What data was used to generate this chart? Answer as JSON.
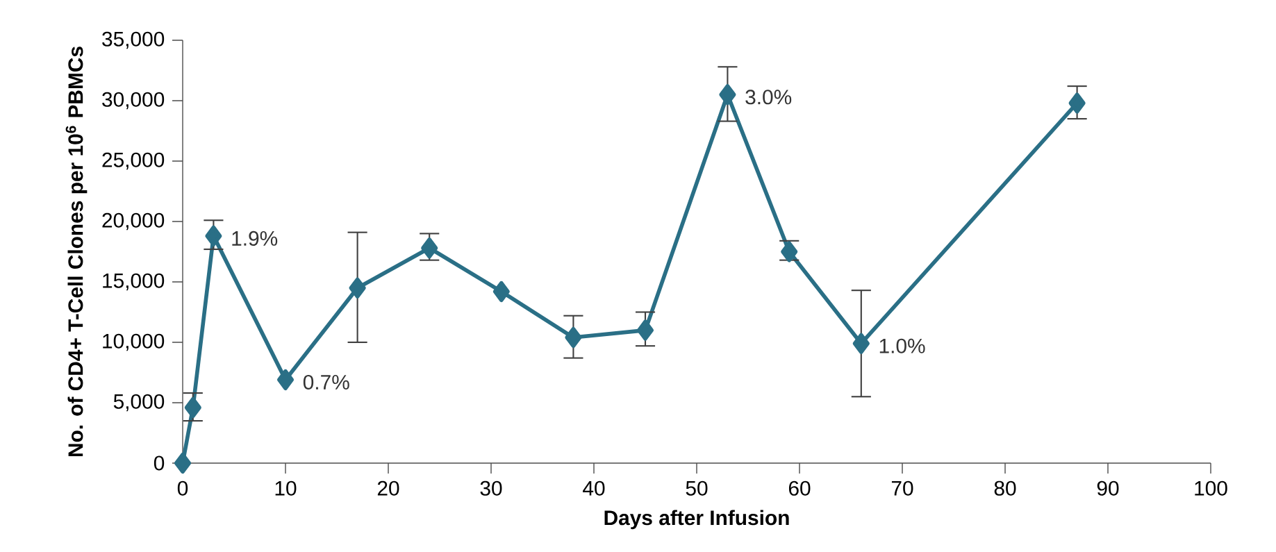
{
  "chart_data": {
    "type": "line",
    "xlabel": "Days after Infusion",
    "ylabel": "No. of CD4+ T-Cell Clones per 10$^{6}$ PBMCs",
    "x": [
      0,
      1,
      3,
      10,
      17,
      24,
      31,
      38,
      45,
      53,
      59,
      66,
      87
    ],
    "series": [
      {
        "color": "#2a6f86",
        "values": [
          0,
          4600,
          18800,
          6900,
          14500,
          17800,
          14200,
          10400,
          11000,
          30500,
          17500,
          9900,
          29800
        ],
        "errors": [
          null,
          [
            3500,
            5800
          ],
          [
            17700,
            20100
          ],
          null,
          [
            10000,
            19100
          ],
          [
            16800,
            19000
          ],
          null,
          [
            8700,
            12200
          ],
          [
            9700,
            12500
          ],
          [
            28300,
            32800
          ],
          [
            16800,
            18400
          ],
          [
            5500,
            14300
          ],
          [
            28500,
            31200
          ]
        ]
      }
    ],
    "xlim": [
      0,
      100
    ],
    "ylim": [
      0,
      35000
    ],
    "xticks": [
      0,
      10,
      20,
      30,
      40,
      50,
      60,
      70,
      80,
      90,
      100
    ],
    "yticks": [
      0,
      {
        "value": 5000,
        "label": "5,000"
      },
      {
        "value": 10000,
        "label": "10,000"
      },
      {
        "value": 15000,
        "label": "15,000"
      },
      {
        "value": 20000,
        "label": "20,000"
      },
      {
        "value": 25000,
        "label": "25,000"
      },
      {
        "value": 30000,
        "label": "30,000"
      },
      {
        "value": 35000,
        "label": "35,000"
      }
    ],
    "marker": "diamond",
    "line_style": "solid",
    "annotations": [
      {
        "text": "1.9%",
        "x": 3,
        "y": 18800
      },
      {
        "text": "0.7%",
        "x": 10,
        "y": 6900
      },
      {
        "text": "3.0%",
        "x": 53,
        "y": 30500
      },
      {
        "text": "1.0%",
        "x": 66,
        "y": 9900
      }
    ]
  }
}
